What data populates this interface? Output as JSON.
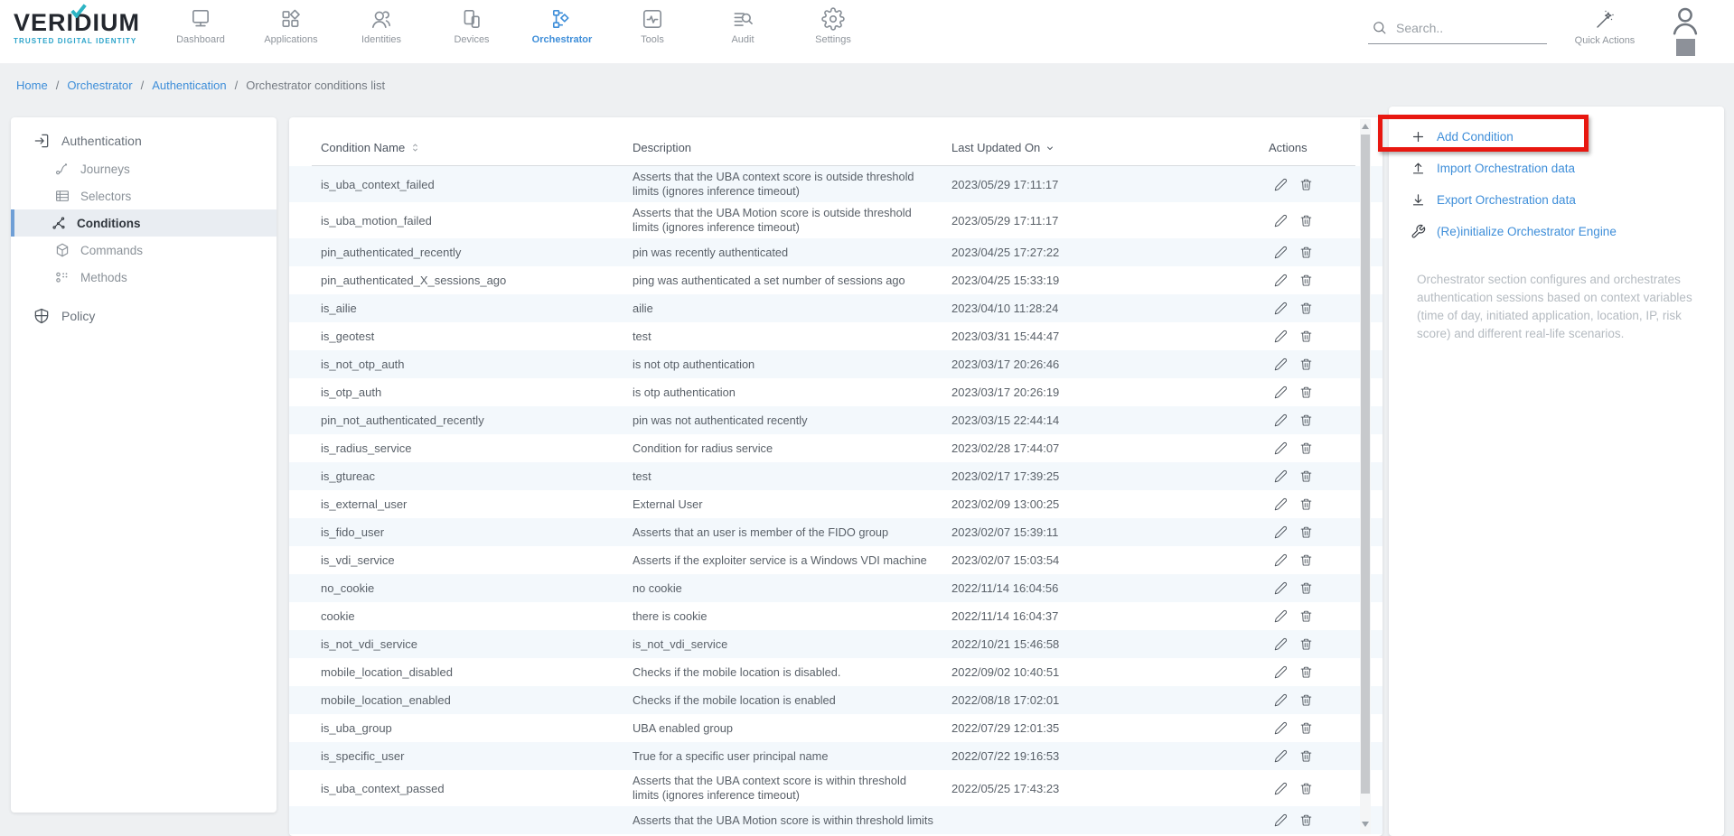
{
  "brand": {
    "name": "VERIDIUM",
    "tagline": "TRUSTED DIGITAL IDENTITY"
  },
  "nav": {
    "items": [
      {
        "label": "Dashboard",
        "icon": "dashboard",
        "active": false
      },
      {
        "label": "Applications",
        "icon": "applications",
        "active": false
      },
      {
        "label": "Identities",
        "icon": "identities",
        "active": false
      },
      {
        "label": "Devices",
        "icon": "devices",
        "active": false
      },
      {
        "label": "Orchestrator",
        "icon": "orchestrator",
        "active": true
      },
      {
        "label": "Tools",
        "icon": "tools",
        "active": false
      },
      {
        "label": "Audit",
        "icon": "audit",
        "active": false
      },
      {
        "label": "Settings",
        "icon": "settings",
        "active": false
      }
    ]
  },
  "topbar": {
    "search_placeholder": "Search..",
    "quick_actions_label": "Quick Actions"
  },
  "breadcrumb": {
    "separator": "/",
    "items": [
      {
        "label": "Home",
        "link": true
      },
      {
        "label": "Orchestrator",
        "link": true
      },
      {
        "label": "Authentication",
        "link": true
      },
      {
        "label": "Orchestrator conditions list",
        "link": false
      }
    ]
  },
  "sidebar": {
    "sections": [
      {
        "label": "Authentication",
        "icon": "login",
        "items": [
          {
            "label": "Journeys",
            "icon": "journeys",
            "active": false
          },
          {
            "label": "Selectors",
            "icon": "selectors",
            "active": false
          },
          {
            "label": "Conditions",
            "icon": "conditions",
            "active": true
          },
          {
            "label": "Commands",
            "icon": "commands",
            "active": false
          },
          {
            "label": "Methods",
            "icon": "methods",
            "active": false
          }
        ]
      },
      {
        "label": "Policy",
        "icon": "shield",
        "items": []
      }
    ]
  },
  "table": {
    "columns": [
      {
        "label": "Condition Name",
        "sort": "updown"
      },
      {
        "label": "Description",
        "sort": "none"
      },
      {
        "label": "Last Updated On",
        "sort": "down"
      },
      {
        "label": "Actions",
        "sort": "none"
      }
    ],
    "rows": [
      {
        "name": "is_uba_context_failed",
        "description": "Asserts that the UBA context score is outside threshold limits (ignores inference timeout)",
        "updated": "2023/05/29 17:11:17"
      },
      {
        "name": "is_uba_motion_failed",
        "description": "Asserts that the UBA Motion score is outside threshold limits (ignores inference timeout)",
        "updated": "2023/05/29 17:11:17"
      },
      {
        "name": "pin_authenticated_recently",
        "description": "pin was recently authenticated",
        "updated": "2023/04/25 17:27:22"
      },
      {
        "name": "pin_authenticated_X_sessions_ago",
        "description": "ping was authenticated a set number of sessions ago",
        "updated": "2023/04/25 15:33:19"
      },
      {
        "name": "is_ailie",
        "description": "ailie",
        "updated": "2023/04/10 11:28:24"
      },
      {
        "name": "is_geotest",
        "description": "test",
        "updated": "2023/03/31 15:44:47"
      },
      {
        "name": "is_not_otp_auth",
        "description": "is not otp authentication",
        "updated": "2023/03/17 20:26:46"
      },
      {
        "name": "is_otp_auth",
        "description": "is otp authentication",
        "updated": "2023/03/17 20:26:19"
      },
      {
        "name": "pin_not_authenticated_recently",
        "description": "pin was not authenticated recently",
        "updated": "2023/03/15 22:44:14"
      },
      {
        "name": "is_radius_service",
        "description": "Condition for radius service",
        "updated": "2023/02/28 17:44:07"
      },
      {
        "name": "is_gtureac",
        "description": "test",
        "updated": "2023/02/17 17:39:25"
      },
      {
        "name": "is_external_user",
        "description": "External User",
        "updated": "2023/02/09 13:00:25"
      },
      {
        "name": "is_fido_user",
        "description": "Asserts that an user is member of the FIDO group",
        "updated": "2023/02/07 15:39:11"
      },
      {
        "name": "is_vdi_service",
        "description": "Asserts if the exploiter service is a Windows VDI machine",
        "updated": "2023/02/07 15:03:54"
      },
      {
        "name": "no_cookie",
        "description": "no cookie",
        "updated": "2022/11/14 16:04:56"
      },
      {
        "name": "cookie",
        "description": "there is cookie",
        "updated": "2022/11/14 16:04:37"
      },
      {
        "name": "is_not_vdi_service",
        "description": "is_not_vdi_service",
        "updated": "2022/10/21 15:46:58"
      },
      {
        "name": "mobile_location_disabled",
        "description": "Checks if the mobile location is disabled.",
        "updated": "2022/09/02 10:40:51"
      },
      {
        "name": "mobile_location_enabled",
        "description": "Checks if the mobile location is enabled",
        "updated": "2022/08/18 17:02:01"
      },
      {
        "name": "is_uba_group",
        "description": "UBA enabled group",
        "updated": "2022/07/29 12:01:35"
      },
      {
        "name": "is_specific_user",
        "description": "True for a specific user principal name",
        "updated": "2022/07/22 19:16:53"
      },
      {
        "name": "is_uba_context_passed",
        "description": "Asserts that the UBA context score is within threshold limits (ignores inference timeout)",
        "updated": "2022/05/25 17:43:23"
      },
      {
        "name": "",
        "description": "Asserts that the UBA Motion score is within threshold limits",
        "updated": ""
      }
    ]
  },
  "panel": {
    "actions": [
      {
        "label": "Add Condition",
        "icon": "plus",
        "highlighted": true
      },
      {
        "label": "Import Orchestration data",
        "icon": "upload",
        "highlighted": false
      },
      {
        "label": "Export Orchestration data",
        "icon": "download",
        "highlighted": false
      },
      {
        "label": "(Re)initialize Orchestrator Engine",
        "icon": "wrench",
        "highlighted": false
      }
    ],
    "description": "Orchestrator section configures and orchestrates authentication sessions based on context variables (time of day, initiated application, location, IP, risk score) and different real-life scenarios."
  },
  "colors": {
    "accent": "#3e8ed9",
    "annotation": "#e81710",
    "stripe": "#f3f8fc",
    "teal": "#2ba4ca"
  }
}
